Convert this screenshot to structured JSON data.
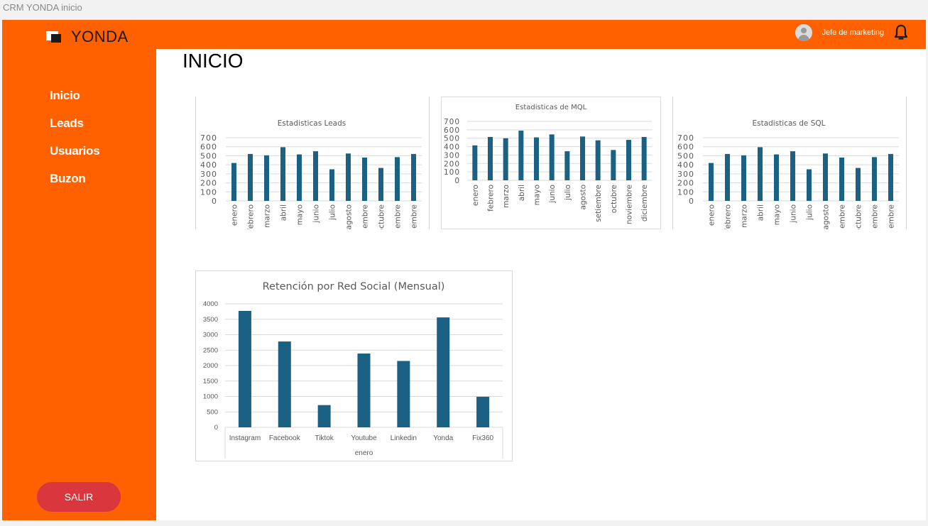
{
  "window": {
    "title": "CRM YONDA inicio"
  },
  "brand": {
    "name": "YONDA"
  },
  "colors": {
    "accent": "#ff6000",
    "bar": "#1a6184",
    "logout": "#d9363e"
  },
  "header": {
    "user_name": "Jefe de marketing",
    "avatar_icon": "user-avatar-icon",
    "notification_icon": "bell-icon"
  },
  "sidebar": {
    "items": [
      {
        "label": "Inicio"
      },
      {
        "label": "Leads"
      },
      {
        "label": "Usuarios"
      },
      {
        "label": "Buzon"
      }
    ],
    "logout_label": "SALIR"
  },
  "main": {
    "title": "INICIO"
  },
  "chart_data": [
    {
      "type": "bar",
      "title": "Estadisticas Leads",
      "categories": [
        "enero",
        "febrero",
        "marzo",
        "abril",
        "mayo",
        "junio",
        "julio",
        "agosto",
        "setiembre",
        "octubre",
        "noviembre",
        "diciembre"
      ],
      "values": [
        420,
        520,
        505,
        595,
        515,
        550,
        350,
        525,
        480,
        365,
        485,
        520
      ],
      "ylim": [
        0,
        700
      ],
      "yticks": [
        0,
        100,
        200,
        300,
        400,
        500,
        600,
        700
      ],
      "grid": true
    },
    {
      "type": "bar",
      "title": "Estadisticas de MQL",
      "categories": [
        "enero",
        "febrero",
        "marzo",
        "abril",
        "mayo",
        "junio",
        "julio",
        "agosto",
        "setiembre",
        "octubre",
        "noviembre",
        "diciembre"
      ],
      "values": [
        415,
        515,
        500,
        590,
        510,
        545,
        345,
        520,
        475,
        360,
        480,
        515
      ],
      "ylim": [
        0,
        700
      ],
      "yticks": [
        0,
        100,
        200,
        300,
        400,
        500,
        600,
        700
      ],
      "grid": true
    },
    {
      "type": "bar",
      "title": "Estadisticas de SQL",
      "categories": [
        "enero",
        "febrero",
        "marzo",
        "abril",
        "mayo",
        "junio",
        "julio",
        "agosto",
        "setiembre",
        "octubre",
        "noviembre",
        "diciembre"
      ],
      "values": [
        420,
        520,
        505,
        595,
        515,
        550,
        350,
        525,
        480,
        365,
        485,
        520
      ],
      "ylim": [
        0,
        700
      ],
      "yticks": [
        0,
        100,
        200,
        300,
        400,
        500,
        600,
        700
      ],
      "grid": true
    },
    {
      "type": "bar",
      "title": "Retención por Red Social (Mensual)",
      "categories": [
        "Instagram",
        "Facebook",
        "Tiktok",
        "Youtube",
        "Linkedin",
        "Yonda",
        "Fix360"
      ],
      "values": [
        3770,
        2780,
        720,
        2390,
        2150,
        3560,
        990
      ],
      "group_label": "enero",
      "ylim": [
        0,
        4000
      ],
      "yticks": [
        0,
        500,
        1000,
        1500,
        2000,
        2500,
        3000,
        3500,
        4000
      ],
      "grid": true
    }
  ]
}
